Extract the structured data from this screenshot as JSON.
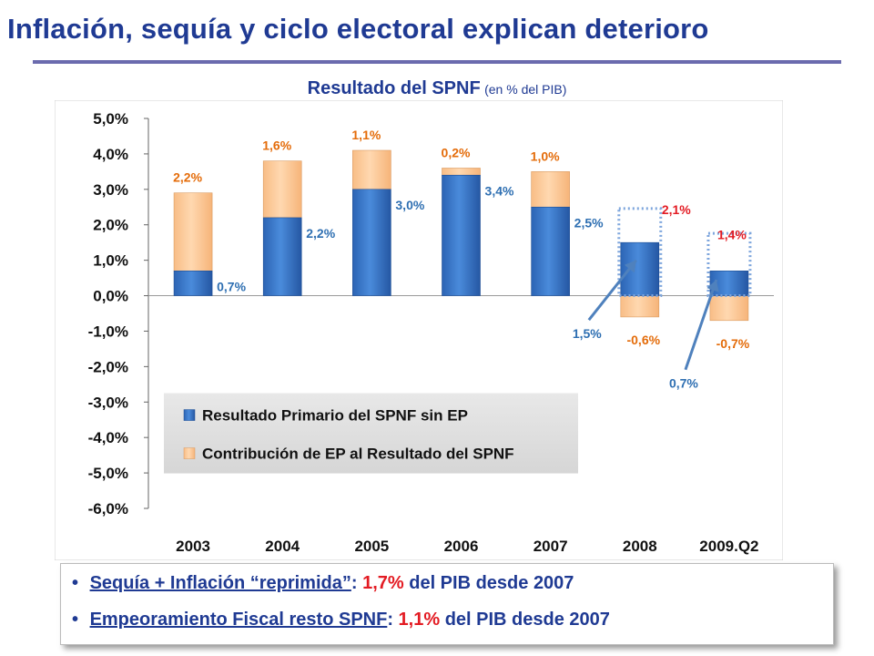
{
  "slide": {
    "title": "Inflación, sequía y ciclo electoral explican deterioro",
    "chart_title": "Resultado del SPNF",
    "chart_unit": "(en % del PIB)"
  },
  "colors": {
    "title": "#1F3A93",
    "primary_bar": "#3C78CC",
    "contribution_bar": "#FBC99A",
    "contribution_label": "#E46C0A",
    "primary_label": "#2E6FB2",
    "highlight_label": "#E31B23",
    "emphasis": "#E31B23"
  },
  "chart_data": {
    "type": "bar",
    "stacked": true,
    "categories": [
      "2003",
      "2004",
      "2005",
      "2006",
      "2007",
      "2008",
      "2009.Q2"
    ],
    "series": [
      {
        "name": "Resultado Primario del SPNF sin EP",
        "values": [
          0.7,
          2.2,
          3.0,
          3.4,
          2.5,
          1.5,
          0.7
        ]
      },
      {
        "name": "Contribución de EP al Resultado del SPNF",
        "values": [
          2.2,
          1.6,
          1.1,
          0.2,
          1.0,
          -0.6,
          -0.7
        ]
      }
    ],
    "labels": {
      "primary": [
        "0,7%",
        "2,2%",
        "3,0%",
        "3,4%",
        "2,5%",
        "1,5%",
        "0,7%"
      ],
      "contribution": [
        "2,2%",
        "1,6%",
        "1,1%",
        "0,2%",
        "1,0%",
        "-0,6%",
        "-0,7%"
      ],
      "deterioration": [
        "",
        "",
        "",
        "",
        "",
        "2,1%",
        "1,4%"
      ]
    },
    "y_ticks": [
      5,
      4,
      3,
      2,
      1,
      0,
      -1,
      -2,
      -3,
      -4,
      -5,
      -6
    ],
    "y_tick_labels": [
      "5,0%",
      "4,0%",
      "3,0%",
      "2,0%",
      "1,0%",
      "0,0%",
      "-1,0%",
      "-2,0%",
      "-3,0%",
      "-4,0%",
      "-5,0%",
      "-6,0%"
    ],
    "ylim": [
      -6,
      5
    ],
    "grid": false,
    "legend_position": "lower-left"
  },
  "bullets": [
    {
      "underlined": "Sequía + Inflación “reprimida”",
      "sep": ": ",
      "value": "1,7%",
      "rest": " del PIB desde 2007"
    },
    {
      "underlined": "Empeoramiento Fiscal resto SPNF",
      "sep": ": ",
      "value": "1,1%",
      "rest": " del PIB desde 2007"
    }
  ]
}
